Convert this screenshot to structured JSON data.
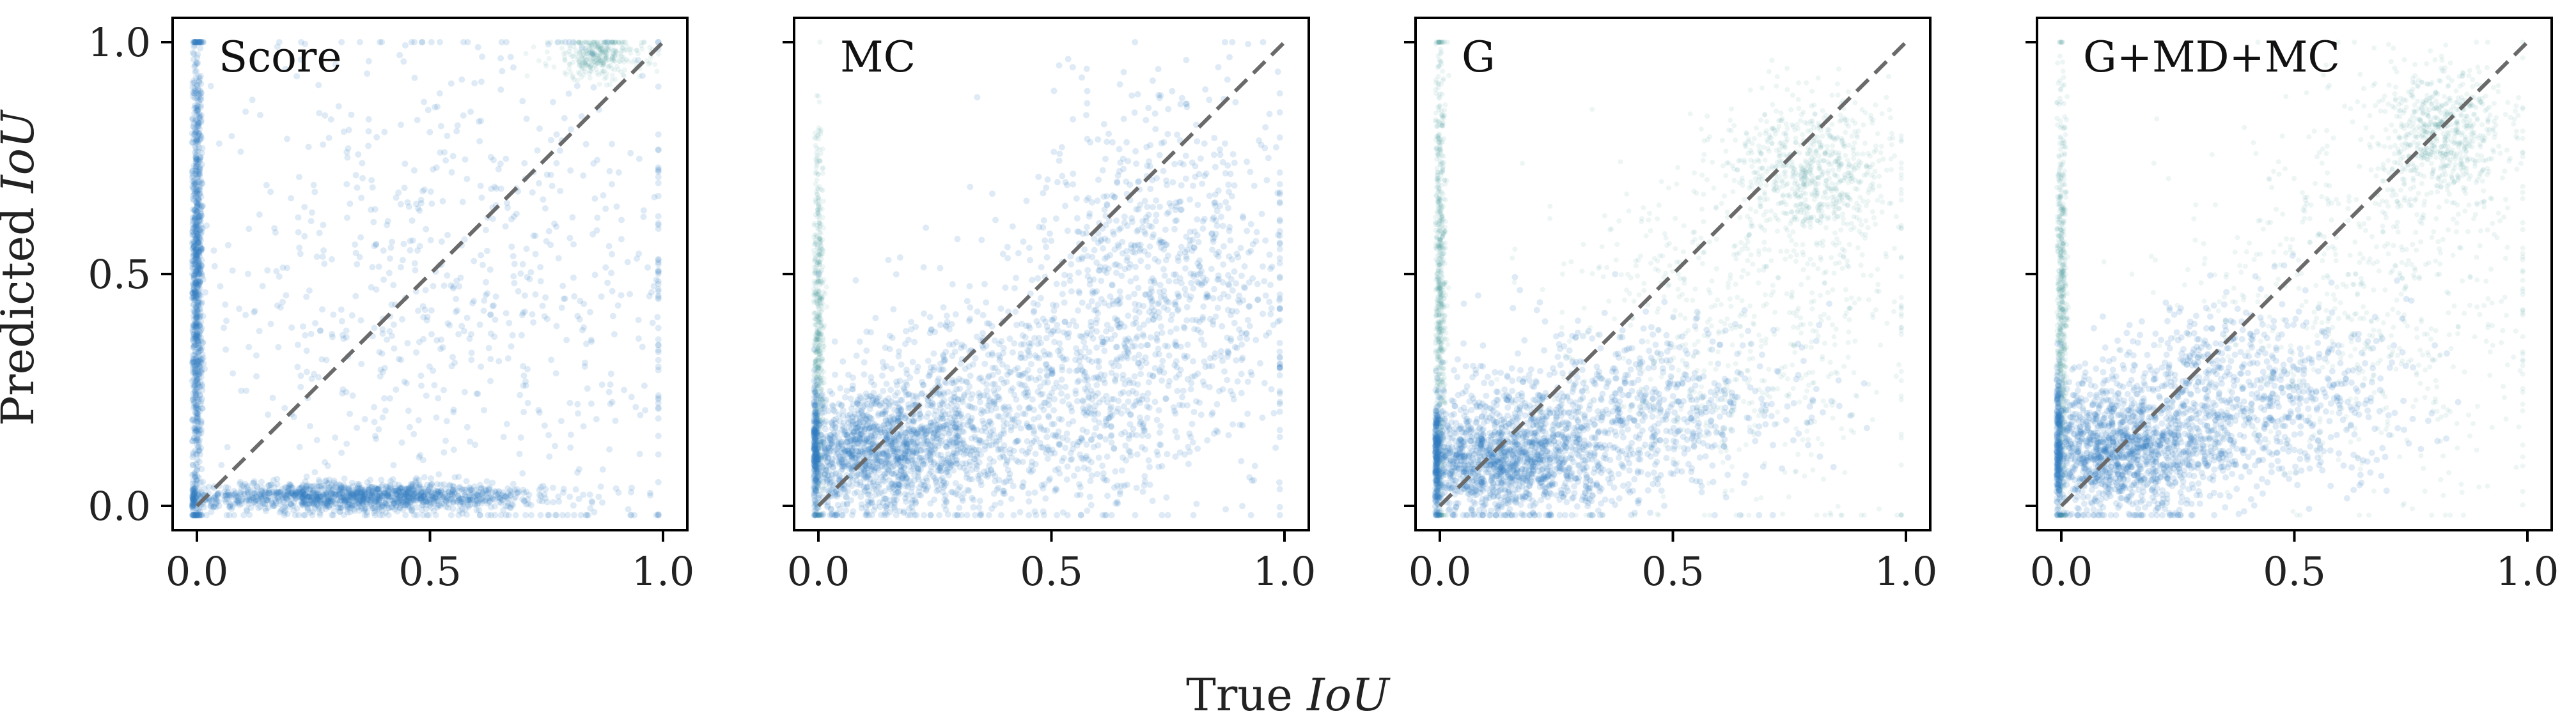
{
  "chart_data": [
    {
      "type": "scatter",
      "panel_label": "Score",
      "xlim": [
        0.0,
        1.0
      ],
      "ylim": [
        0.0,
        1.0
      ],
      "xticks": [
        "0.0",
        "0.5",
        "1.0"
      ],
      "yticks": [
        "0.0",
        "0.5",
        "1.0"
      ],
      "reference_line": "y = x",
      "clusters": [
        {
          "x": 0.0,
          "y": 0.5,
          "sx": 0.006,
          "sy": 0.28,
          "n": 900
        },
        {
          "x": 0.35,
          "y": 0.02,
          "sx": 0.2,
          "sy": 0.015,
          "n": 1400
        },
        {
          "x": 0.86,
          "y": 0.97,
          "sx": 0.05,
          "sy": 0.025,
          "n": 350
        },
        {
          "x": 0.55,
          "y": 0.45,
          "sx": 0.28,
          "sy": 0.3,
          "n": 800
        }
      ]
    },
    {
      "type": "scatter",
      "panel_label": "MC",
      "xlim": [
        0.0,
        1.0
      ],
      "ylim": [
        0.0,
        1.0
      ],
      "xticks": [
        "0.0",
        "0.5",
        "1.0"
      ],
      "yticks": [
        "0.0",
        "0.5",
        "1.0"
      ],
      "reference_line": "y = x",
      "clusters": [
        {
          "x": 0.0,
          "y": 0.35,
          "sx": 0.006,
          "sy": 0.22,
          "n": 600
        },
        {
          "x": 0.12,
          "y": 0.12,
          "sx": 0.12,
          "sy": 0.07,
          "n": 1600
        },
        {
          "x": 0.45,
          "y": 0.22,
          "sx": 0.18,
          "sy": 0.12,
          "n": 900
        },
        {
          "x": 0.75,
          "y": 0.5,
          "sx": 0.15,
          "sy": 0.2,
          "n": 900
        }
      ]
    },
    {
      "type": "scatter",
      "panel_label": "G",
      "xlim": [
        0.0,
        1.0
      ],
      "ylim": [
        0.0,
        1.0
      ],
      "xticks": [
        "0.0",
        "0.5",
        "1.0"
      ],
      "yticks": [
        "0.0",
        "0.5",
        "1.0"
      ],
      "reference_line": "y = x",
      "clusters": [
        {
          "x": 0.0,
          "y": 0.45,
          "sx": 0.006,
          "sy": 0.28,
          "n": 700
        },
        {
          "x": 0.12,
          "y": 0.1,
          "sx": 0.12,
          "sy": 0.06,
          "n": 1500
        },
        {
          "x": 0.4,
          "y": 0.2,
          "sx": 0.18,
          "sy": 0.1,
          "n": 800
        },
        {
          "x": 0.8,
          "y": 0.72,
          "sx": 0.08,
          "sy": 0.08,
          "n": 700
        },
        {
          "x": 0.65,
          "y": 0.4,
          "sx": 0.2,
          "sy": 0.2,
          "n": 700
        }
      ]
    },
    {
      "type": "scatter",
      "panel_label": "G+MD+MC",
      "xlim": [
        0.0,
        1.0
      ],
      "ylim": [
        0.0,
        1.0
      ],
      "xticks": [
        "0.0",
        "0.5",
        "1.0"
      ],
      "yticks": [
        "0.0",
        "0.5",
        "1.0"
      ],
      "reference_line": "y = x",
      "clusters": [
        {
          "x": 0.0,
          "y": 0.4,
          "sx": 0.006,
          "sy": 0.25,
          "n": 650
        },
        {
          "x": 0.12,
          "y": 0.12,
          "sx": 0.12,
          "sy": 0.07,
          "n": 1500
        },
        {
          "x": 0.4,
          "y": 0.24,
          "sx": 0.17,
          "sy": 0.1,
          "n": 800
        },
        {
          "x": 0.82,
          "y": 0.8,
          "sx": 0.07,
          "sy": 0.07,
          "n": 650
        },
        {
          "x": 0.65,
          "y": 0.45,
          "sx": 0.2,
          "sy": 0.22,
          "n": 700
        }
      ]
    }
  ],
  "ylabel_text": "Predicted ",
  "ylabel_var": "IoU",
  "xlabel_text": "True ",
  "xlabel_var": "IoU",
  "colors": {
    "point_dense": "#2f7bbf",
    "point_sparse": "#4f9d9a",
    "reference_line": "#6a6a6a",
    "frame": "#000000"
  }
}
